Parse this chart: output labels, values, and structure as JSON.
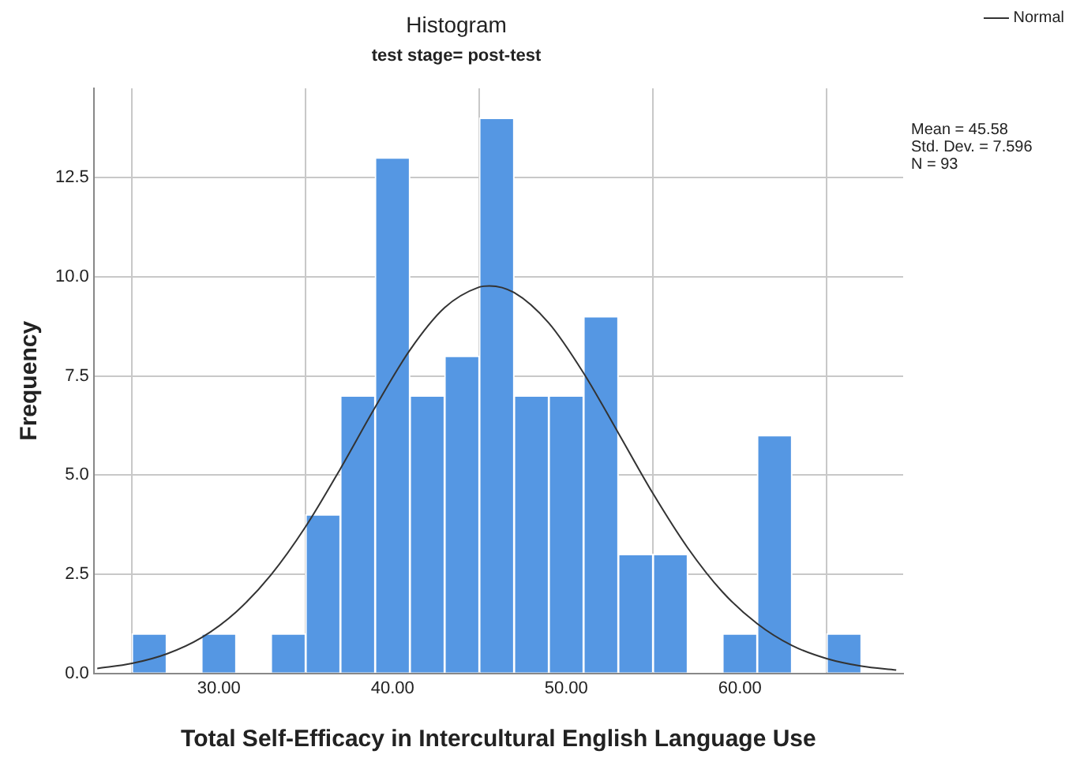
{
  "chart_data": {
    "type": "histogram",
    "title": "Histogram",
    "subtitle": "test stage= post-test",
    "xlabel": "Total Self-Efficacy in Intercultural English Language Use",
    "ylabel": "Frequency",
    "bins": [
      25,
      27,
      29,
      31,
      33,
      35,
      37,
      39,
      41,
      43,
      45,
      47,
      49,
      51,
      53,
      55,
      57,
      59,
      61,
      63,
      65,
      67
    ],
    "values": [
      1,
      0,
      1,
      0,
      1,
      4,
      7,
      13,
      7,
      8,
      14,
      7,
      7,
      9,
      3,
      3,
      0,
      1,
      6,
      0,
      1
    ],
    "color": "#5597e3",
    "series": [
      {
        "name": "Normal",
        "type": "line",
        "color": "#333333",
        "x": [
          23,
          25,
          27,
          29,
          31,
          33,
          35,
          37,
          39,
          41,
          43,
          45,
          45.58,
          47,
          49,
          51,
          53,
          55,
          57,
          59,
          61,
          63,
          65,
          67,
          69
        ],
        "values": [
          0.12,
          0.25,
          0.49,
          0.9,
          1.55,
          2.48,
          3.7,
          5.16,
          6.71,
          8.15,
          9.22,
          9.74,
          9.77,
          9.6,
          8.83,
          7.57,
          6.06,
          4.53,
          3.16,
          2.05,
          1.25,
          0.7,
          0.37,
          0.18,
          0.08
        ]
      }
    ],
    "xlim": [
      22.8,
      69.4
    ],
    "xticks": [
      {
        "value": 30,
        "label": "30.00"
      },
      {
        "value": 40,
        "label": "40.00"
      },
      {
        "value": 50,
        "label": "50.00"
      },
      {
        "value": 60,
        "label": "60.00"
      }
    ],
    "ylim": [
      0,
      14.75
    ],
    "yticks": [
      {
        "value": 0,
        "label": "0.0"
      },
      {
        "value": 2.5,
        "label": "2.5"
      },
      {
        "value": 5,
        "label": "5.0"
      },
      {
        "value": 7.5,
        "label": "7.5"
      },
      {
        "value": 10,
        "label": "10.0"
      },
      {
        "value": 12.5,
        "label": "12.5"
      }
    ],
    "grid": true,
    "legend": "top right",
    "marker": "none",
    "annotations": [
      "Mean = 45.58",
      "Std. Dev. = 7.596",
      "N = 93"
    ]
  }
}
